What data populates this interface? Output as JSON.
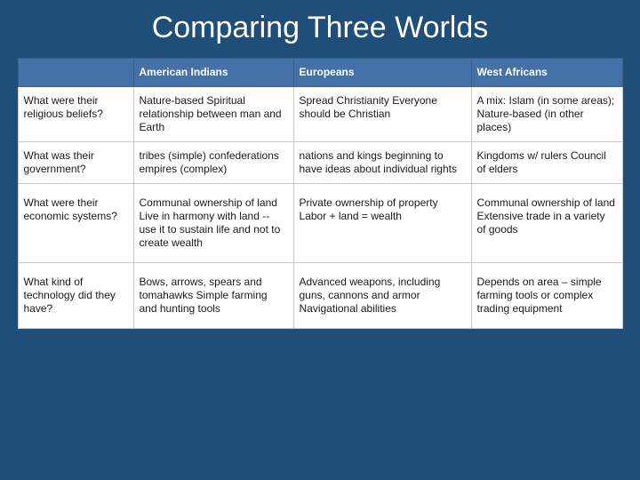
{
  "title": "Comparing Three Worlds",
  "colors": {
    "page_bg": "#1f4e79",
    "header_bg": "#4472a8",
    "header_text": "#ffffff",
    "cell_bg": "#ffffff",
    "cell_text": "#1a1a1a",
    "border": "#c9c9c9"
  },
  "table": {
    "columns": [
      "American Indians",
      "Europeans",
      "West Africans"
    ],
    "rows": [
      {
        "label": "What were their religious beliefs?",
        "cells": [
          "Nature-based\nSpiritual relationship between man and Earth",
          "Spread Christianity\nEveryone should be Christian",
          "A mix: Islam (in some areas); Nature-based (in other places)"
        ]
      },
      {
        "label": "What was their government?",
        "cells": [
          "tribes (simple) confederations  empires (complex)",
          "nations and kings\nbeginning to have ideas about individual rights",
          "Kingdoms w/ rulers\nCouncil of elders"
        ]
      },
      {
        "label": "What were their economic systems?",
        "cells": [
          "Communal ownership of land\nLive in harmony with land -- use it to sustain life and not to create wealth",
          "Private ownership of property\nLabor + land = wealth",
          "Communal ownership of land\nExtensive trade in a variety of goods"
        ]
      },
      {
        "label": "What kind of technology did they have?",
        "cells": [
          "Bows, arrows, spears and tomahawks\nSimple farming and hunting tools",
          "Advanced weapons, including guns, cannons and armor\nNavigational abilities",
          "Depends on area – simple farming tools or complex trading equipment"
        ]
      }
    ]
  }
}
